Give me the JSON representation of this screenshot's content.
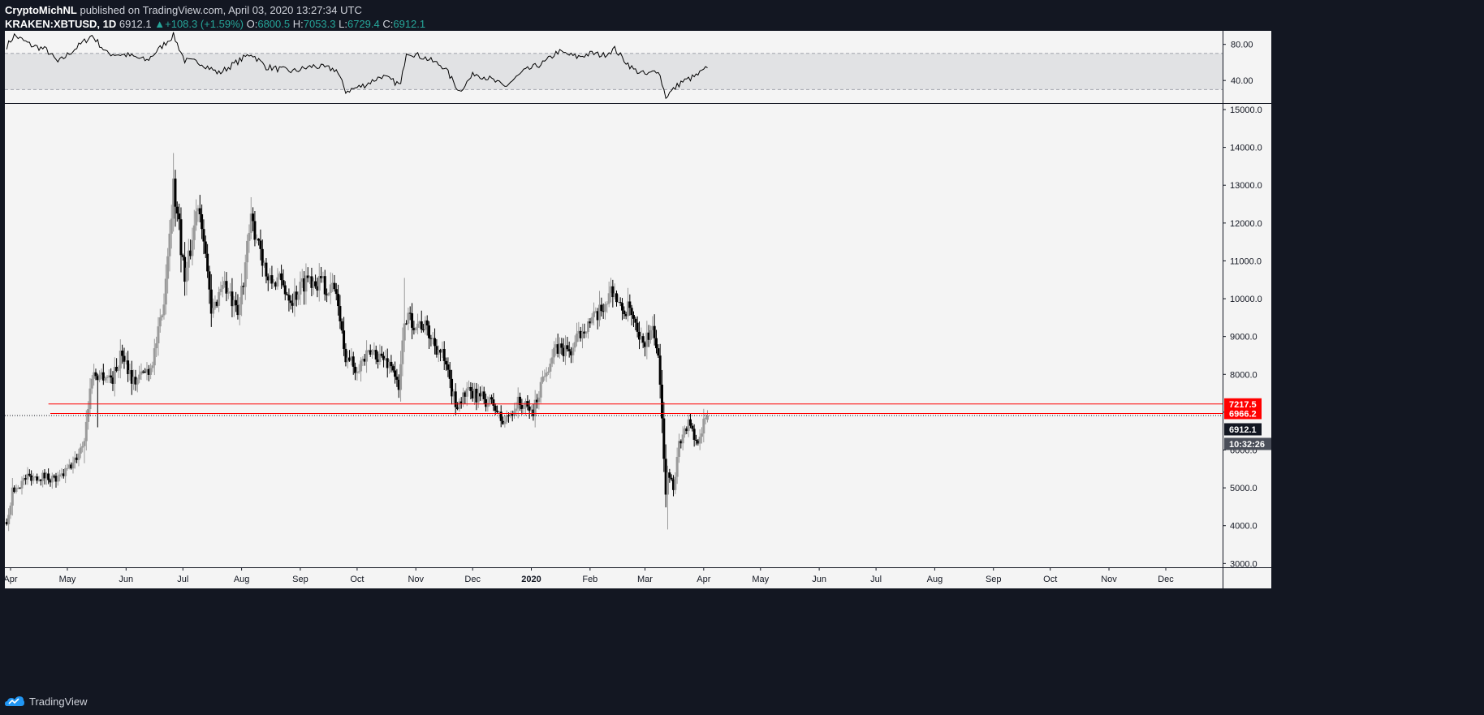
{
  "header": {
    "author": "CryptoMichNL",
    "published": "published on TradingView.com, April 03, 2020 13:27:34 UTC",
    "symbol": "KRAKEN:XBTUSD, 1D",
    "last": "6912.1",
    "change": "+108.3 (+1.59%)",
    "open_label": "O:",
    "open": "6800.5",
    "high_label": "H:",
    "high": "7053.3",
    "low_label": "L:",
    "low": "6729.4",
    "close_label": "C:",
    "close": "6912.1"
  },
  "footer": {
    "brand": "TradingView",
    "logo_icon": "tradingview-logo-icon"
  },
  "colors": {
    "background": "#131722",
    "pane": "#f4f4f4",
    "up": "#9a9a9a",
    "down": "#000000",
    "level": "#ff0000",
    "rsi_band": "#e1e2e4"
  },
  "chart_data": {
    "type": "candlestick",
    "symbol": "KRAKEN:XBTUSD",
    "interval": "1D",
    "x_axis": {
      "tick_labels": [
        "Apr",
        "May",
        "Jun",
        "Jul",
        "Aug",
        "Sep",
        "Oct",
        "Nov",
        "Dec",
        "2020",
        "Feb",
        "Mar",
        "Apr",
        "May",
        "Jun",
        "Jul",
        "Aug",
        "Sep",
        "Oct",
        "Nov",
        "Dec"
      ],
      "tick_dates": [
        "2019-04-01",
        "2019-05-01",
        "2019-06-01",
        "2019-07-01",
        "2019-08-01",
        "2019-09-01",
        "2019-10-01",
        "2019-11-01",
        "2019-12-01",
        "2020-01-01",
        "2020-02-01",
        "2020-03-01",
        "2020-04-01",
        "2020-05-01",
        "2020-06-01",
        "2020-07-01",
        "2020-08-01",
        "2020-09-01",
        "2020-10-01",
        "2020-11-01",
        "2020-12-01"
      ],
      "range": [
        "2019-03-29",
        "2020-12-31"
      ]
    },
    "price_axis": {
      "ylim": [
        2900,
        15150
      ],
      "tick_labels": [
        "3000.0",
        "4000.0",
        "5000.0",
        "6000.0",
        "7000.0",
        "8000.0",
        "9000.0",
        "10000.0",
        "11000.0",
        "12000.0",
        "13000.0",
        "14000.0",
        "15000.0"
      ],
      "tick_values": [
        3000,
        4000,
        5000,
        6000,
        7000,
        8000,
        9000,
        10000,
        11000,
        12000,
        13000,
        14000,
        15000
      ]
    },
    "price_path": [
      {
        "date": "2019-03-30",
        "price": 4100
      },
      {
        "date": "2019-04-02",
        "price": 4900
      },
      {
        "date": "2019-04-10",
        "price": 5300
      },
      {
        "date": "2019-04-20",
        "price": 5300
      },
      {
        "date": "2019-04-26",
        "price": 5200
      },
      {
        "date": "2019-05-05",
        "price": 5700
      },
      {
        "date": "2019-05-10",
        "price": 6300
      },
      {
        "date": "2019-05-14",
        "price": 8000
      },
      {
        "date": "2019-05-20",
        "price": 8000
      },
      {
        "date": "2019-05-25",
        "price": 7900
      },
      {
        "date": "2019-05-30",
        "price": 8600
      },
      {
        "date": "2019-06-05",
        "price": 7800
      },
      {
        "date": "2019-06-14",
        "price": 8200
      },
      {
        "date": "2019-06-20",
        "price": 9500
      },
      {
        "date": "2019-06-26",
        "price": 13000
      },
      {
        "date": "2019-06-29",
        "price": 11900
      },
      {
        "date": "2019-07-02",
        "price": 10500
      },
      {
        "date": "2019-07-04",
        "price": 11000
      },
      {
        "date": "2019-07-09",
        "price": 12600
      },
      {
        "date": "2019-07-12",
        "price": 11800
      },
      {
        "date": "2019-07-16",
        "price": 9500
      },
      {
        "date": "2019-07-22",
        "price": 10500
      },
      {
        "date": "2019-07-30",
        "price": 9500
      },
      {
        "date": "2019-08-06",
        "price": 12000
      },
      {
        "date": "2019-08-10",
        "price": 11600
      },
      {
        "date": "2019-08-15",
        "price": 10400
      },
      {
        "date": "2019-08-20",
        "price": 10500
      },
      {
        "date": "2019-08-28",
        "price": 10000
      },
      {
        "date": "2019-09-05",
        "price": 10600
      },
      {
        "date": "2019-09-20",
        "price": 10200
      },
      {
        "date": "2019-09-24",
        "price": 8600
      },
      {
        "date": "2019-09-30",
        "price": 8200
      },
      {
        "date": "2019-10-10",
        "price": 8600
      },
      {
        "date": "2019-10-20",
        "price": 8200
      },
      {
        "date": "2019-10-23",
        "price": 7500
      },
      {
        "date": "2019-10-26",
        "price": 9500
      },
      {
        "date": "2019-11-05",
        "price": 9300
      },
      {
        "date": "2019-11-15",
        "price": 8500
      },
      {
        "date": "2019-11-22",
        "price": 7200
      },
      {
        "date": "2019-11-28",
        "price": 7500
      },
      {
        "date": "2019-12-05",
        "price": 7400
      },
      {
        "date": "2019-12-12",
        "price": 7200
      },
      {
        "date": "2019-12-17",
        "price": 6700
      },
      {
        "date": "2019-12-25",
        "price": 7250
      },
      {
        "date": "2020-01-02",
        "price": 7000
      },
      {
        "date": "2020-01-08",
        "price": 8100
      },
      {
        "date": "2020-01-15",
        "price": 8700
      },
      {
        "date": "2020-01-22",
        "price": 8600
      },
      {
        "date": "2020-01-29",
        "price": 9300
      },
      {
        "date": "2020-02-05",
        "price": 9500
      },
      {
        "date": "2020-02-13",
        "price": 10300
      },
      {
        "date": "2020-02-17",
        "price": 9700
      },
      {
        "date": "2020-02-22",
        "price": 9700
      },
      {
        "date": "2020-02-27",
        "price": 8800
      },
      {
        "date": "2020-03-06",
        "price": 9100
      },
      {
        "date": "2020-03-09",
        "price": 7900
      },
      {
        "date": "2020-03-12",
        "price": 4900
      },
      {
        "date": "2020-03-13",
        "price": 5500
      },
      {
        "date": "2020-03-16",
        "price": 5000
      },
      {
        "date": "2020-03-19",
        "price": 6200
      },
      {
        "date": "2020-03-24",
        "price": 6700
      },
      {
        "date": "2020-03-28",
        "price": 6200
      },
      {
        "date": "2020-04-03",
        "price": 6912
      }
    ],
    "levels": [
      {
        "label": "7217.5",
        "value": 7217.5,
        "from": "2019-04-21",
        "style": "solid",
        "color": "#ff0000"
      },
      {
        "label": "6966.2",
        "value": 6966.2,
        "from": "2019-04-22",
        "style": "solid",
        "color": "#ff0000"
      }
    ],
    "last_price": {
      "label": "6912.1",
      "value": 6912.1,
      "line_style": "dotted"
    },
    "countdown": "10:32:26",
    "indicator": {
      "name": "RSI",
      "ylim": [
        15,
        95
      ],
      "tick_labels": [
        "80.00",
        "40.00"
      ],
      "tick_values": [
        80,
        40
      ],
      "band": [
        70,
        30
      ],
      "points": [
        {
          "date": "2019-03-30",
          "value": 78
        },
        {
          "date": "2019-04-03",
          "value": 90
        },
        {
          "date": "2019-04-12",
          "value": 79
        },
        {
          "date": "2019-04-20",
          "value": 74
        },
        {
          "date": "2019-04-26",
          "value": 60
        },
        {
          "date": "2019-05-08",
          "value": 80
        },
        {
          "date": "2019-05-14",
          "value": 90
        },
        {
          "date": "2019-05-22",
          "value": 70
        },
        {
          "date": "2019-06-02",
          "value": 68
        },
        {
          "date": "2019-06-12",
          "value": 62
        },
        {
          "date": "2019-06-26",
          "value": 90
        },
        {
          "date": "2019-07-02",
          "value": 62
        },
        {
          "date": "2019-07-10",
          "value": 60
        },
        {
          "date": "2019-07-20",
          "value": 48
        },
        {
          "date": "2019-08-06",
          "value": 70
        },
        {
          "date": "2019-08-14",
          "value": 55
        },
        {
          "date": "2019-08-28",
          "value": 50
        },
        {
          "date": "2019-09-08",
          "value": 56
        },
        {
          "date": "2019-09-20",
          "value": 52
        },
        {
          "date": "2019-09-25",
          "value": 28
        },
        {
          "date": "2019-10-05",
          "value": 35
        },
        {
          "date": "2019-10-14",
          "value": 45
        },
        {
          "date": "2019-10-24",
          "value": 35
        },
        {
          "date": "2019-10-27",
          "value": 72
        },
        {
          "date": "2019-11-06",
          "value": 65
        },
        {
          "date": "2019-11-16",
          "value": 55
        },
        {
          "date": "2019-11-24",
          "value": 28
        },
        {
          "date": "2019-12-02",
          "value": 48
        },
        {
          "date": "2019-12-10",
          "value": 42
        },
        {
          "date": "2019-12-18",
          "value": 33
        },
        {
          "date": "2019-12-28",
          "value": 50
        },
        {
          "date": "2020-01-08",
          "value": 60
        },
        {
          "date": "2020-01-15",
          "value": 72
        },
        {
          "date": "2020-01-25",
          "value": 66
        },
        {
          "date": "2020-02-02",
          "value": 70
        },
        {
          "date": "2020-02-08",
          "value": 68
        },
        {
          "date": "2020-02-14",
          "value": 75
        },
        {
          "date": "2020-02-18",
          "value": 65
        },
        {
          "date": "2020-02-24",
          "value": 52
        },
        {
          "date": "2020-03-02",
          "value": 46
        },
        {
          "date": "2020-03-08",
          "value": 52
        },
        {
          "date": "2020-03-12",
          "value": 22
        },
        {
          "date": "2020-03-16",
          "value": 30
        },
        {
          "date": "2020-03-20",
          "value": 38
        },
        {
          "date": "2020-03-28",
          "value": 45
        },
        {
          "date": "2020-04-03",
          "value": 54
        }
      ]
    }
  }
}
